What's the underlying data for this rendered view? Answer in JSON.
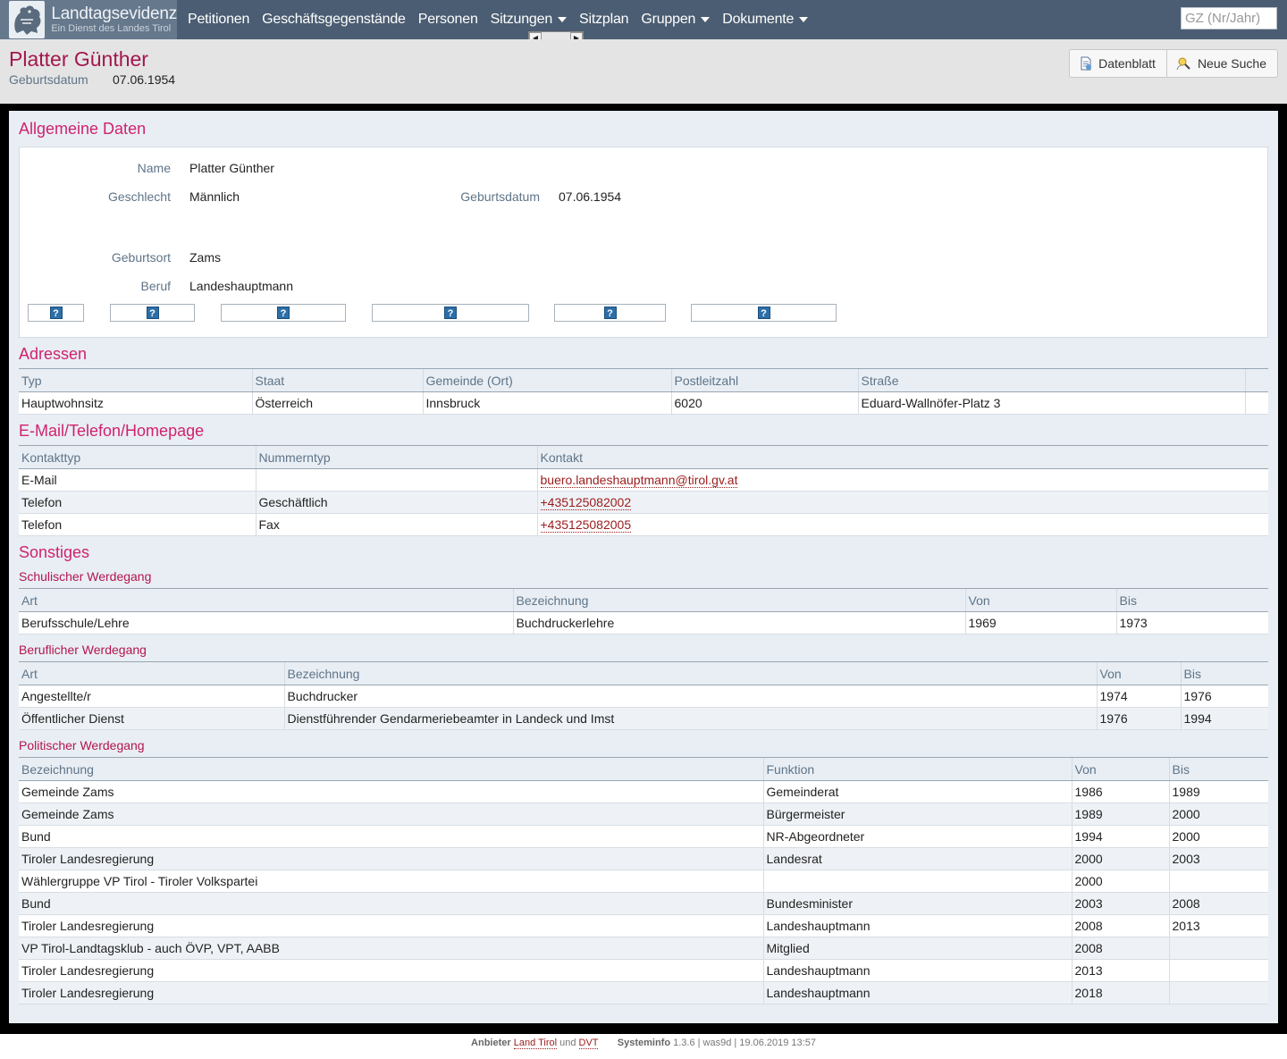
{
  "nav": {
    "brand_title": "Landtagsevidenz",
    "brand_sub": "Ein Dienst des Landes Tirol",
    "items": [
      {
        "label": "Petitionen",
        "dropdown": false
      },
      {
        "label": "Geschäftsgegenstände",
        "dropdown": false
      },
      {
        "label": "Personen",
        "dropdown": false
      },
      {
        "label": "Sitzungen",
        "dropdown": true
      },
      {
        "label": "Sitzplan",
        "dropdown": false
      },
      {
        "label": "Gruppen",
        "dropdown": true
      },
      {
        "label": "Dokumente",
        "dropdown": true
      }
    ],
    "search_placeholder": "GZ (Nr/Jahr)"
  },
  "header": {
    "title": "Platter Günther",
    "sub_label": "Geburtsdatum",
    "sub_value": "07.06.1954",
    "btn_datenblatt": "Datenblatt",
    "btn_neue_suche": "Neue Suche"
  },
  "general": {
    "heading": "Allgemeine Daten",
    "name_label": "Name",
    "name_value": "Platter Günther",
    "gender_label": "Geschlecht",
    "gender_value": "Männlich",
    "birth_label": "Geburtsdatum",
    "birth_value": "07.06.1954",
    "birthplace_label": "Geburtsort",
    "birthplace_value": "Zams",
    "job_label": "Beruf",
    "job_value": "Landeshauptmann",
    "help_icon": "?"
  },
  "addresses": {
    "heading": "Adressen",
    "columns": [
      "Typ",
      "Staat",
      "Gemeinde (Ort)",
      "Postleitzahl",
      "Straße",
      ""
    ],
    "rows": [
      [
        "Hauptwohnsitz",
        "Österreich",
        "Innsbruck",
        "6020",
        "Eduard-Wallnöfer-Platz 3",
        ""
      ]
    ]
  },
  "contacts": {
    "heading": "E-Mail/Telefon/Homepage",
    "columns": [
      "Kontakttyp",
      "Nummerntyp",
      "Kontakt"
    ],
    "rows": [
      [
        "E-Mail",
        "",
        "buero.landeshauptmann@tirol.gv.at"
      ],
      [
        "Telefon",
        "Geschäftlich",
        "+435125082002"
      ],
      [
        "Telefon",
        "Fax",
        "+435125082005"
      ]
    ]
  },
  "misc": {
    "heading": "Sonstiges",
    "school": {
      "heading": "Schulischer Werdegang",
      "columns": [
        "Art",
        "Bezeichnung",
        "Von",
        "Bis"
      ],
      "rows": [
        [
          "Berufsschule/Lehre",
          "Buchdruckerlehre",
          "1969",
          "1973"
        ]
      ]
    },
    "career": {
      "heading": "Beruflicher Werdegang",
      "columns": [
        "Art",
        "Bezeichnung",
        "Von",
        "Bis"
      ],
      "rows": [
        [
          "Angestellte/r",
          "Buchdrucker",
          "1974",
          "1976"
        ],
        [
          "Öffentlicher Dienst",
          "Dienstführender Gendarmeriebeamter in Landeck und Imst",
          "1976",
          "1994"
        ]
      ]
    },
    "political": {
      "heading": "Politischer Werdegang",
      "columns": [
        "Bezeichnung",
        "Funktion",
        "Von",
        "Bis"
      ],
      "rows": [
        [
          "Gemeinde Zams",
          "Gemeinderat",
          "1986",
          "1989"
        ],
        [
          "Gemeinde Zams",
          "Bürgermeister",
          "1989",
          "2000"
        ],
        [
          "Bund",
          "NR-Abgeordneter",
          "1994",
          "2000"
        ],
        [
          "Tiroler Landesregierung",
          "Landesrat",
          "2000",
          "2003"
        ],
        [
          "Wählergruppe VP Tirol - Tiroler Volkspartei",
          "",
          "2000",
          ""
        ],
        [
          "Bund",
          "Bundesminister",
          "2003",
          "2008"
        ],
        [
          "Tiroler Landesregierung",
          "Landeshauptmann",
          "2008",
          "2013"
        ],
        [
          "VP Tirol-Landtagsklub - auch ÖVP, VPT, AABB",
          "Mitglied",
          "2008",
          ""
        ],
        [
          "Tiroler Landesregierung",
          "Landeshauptmann",
          "2013",
          ""
        ],
        [
          "Tiroler Landesregierung",
          "Landeshauptmann",
          "2018",
          ""
        ]
      ]
    }
  },
  "footer": {
    "provider_label": "Anbieter",
    "provider_1": "Land Tirol",
    "and": "und",
    "provider_2": "DVT",
    "sysinfo_label": "Systeminfo",
    "sysinfo_value": "1.3.6 | was9d | 19.06.2019 13:57"
  },
  "colors": {
    "nav_bg": "#4b5d72",
    "title": "#a3174e",
    "heading": "#d0226e",
    "label": "#5f7488",
    "link": "#9b1b1b"
  }
}
